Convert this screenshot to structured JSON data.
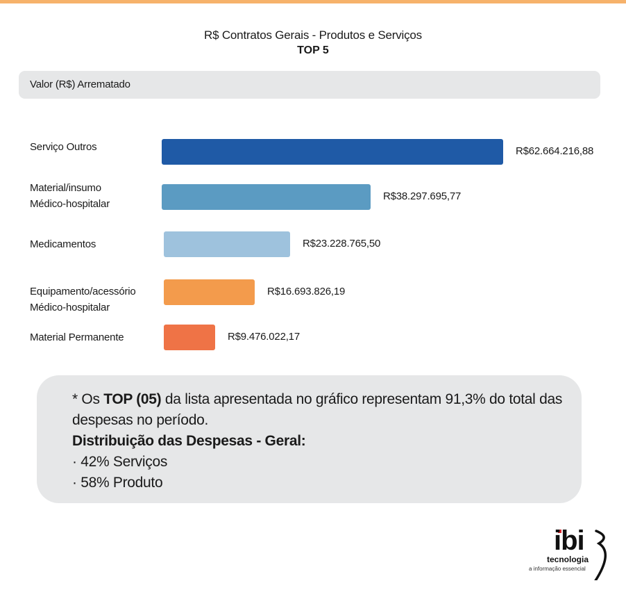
{
  "colors": {
    "accent": "#f6b26b",
    "header_band": "#e6e7e8",
    "note_box": "#e6e7e8",
    "logo_red": "#d6262c"
  },
  "chart_data": {
    "type": "bar",
    "orientation": "horizontal",
    "title": "R$ Contratos Gerais - Produtos e Serviços",
    "subtitle": "TOP 5",
    "header": "Valor (R$) Arrematado",
    "categories": [
      [
        "Serviço Outros"
      ],
      [
        "Material/insumo",
        "Médico-hospitalar"
      ],
      [
        "Medicamentos"
      ],
      [
        "Equipamento/acessório",
        "Médico-hospitalar"
      ],
      [
        "Material Permanente"
      ]
    ],
    "values": [
      62664216.88,
      38297695.77,
      23228765.5,
      16693826.19,
      9476022.17
    ],
    "value_labels": [
      "R$62.664.216,88",
      "R$38.297.695,77",
      "R$23.228.765,50",
      "R$16.693.826,19",
      "R$9.476.022,17"
    ],
    "bar_colors": [
      "#1f5aa6",
      "#5b9bc2",
      "#9ec2dd",
      "#f39b4c",
      "#ef7346"
    ],
    "grid": false,
    "legend": "none"
  },
  "note": {
    "line1_prefix": "* Os ",
    "line1_bold": "TOP (05)",
    "line1_suffix": " da lista apresentada no gráfico representam 91,3% do total das despesas no período.",
    "heading": "Distribuição das Despesas - Geral:",
    "items": [
      "· 42% Serviços",
      "· 58% Produto"
    ]
  },
  "logo": {
    "name": "ibi",
    "subtitle": "tecnologia",
    "tagline": "a informação essencial"
  }
}
